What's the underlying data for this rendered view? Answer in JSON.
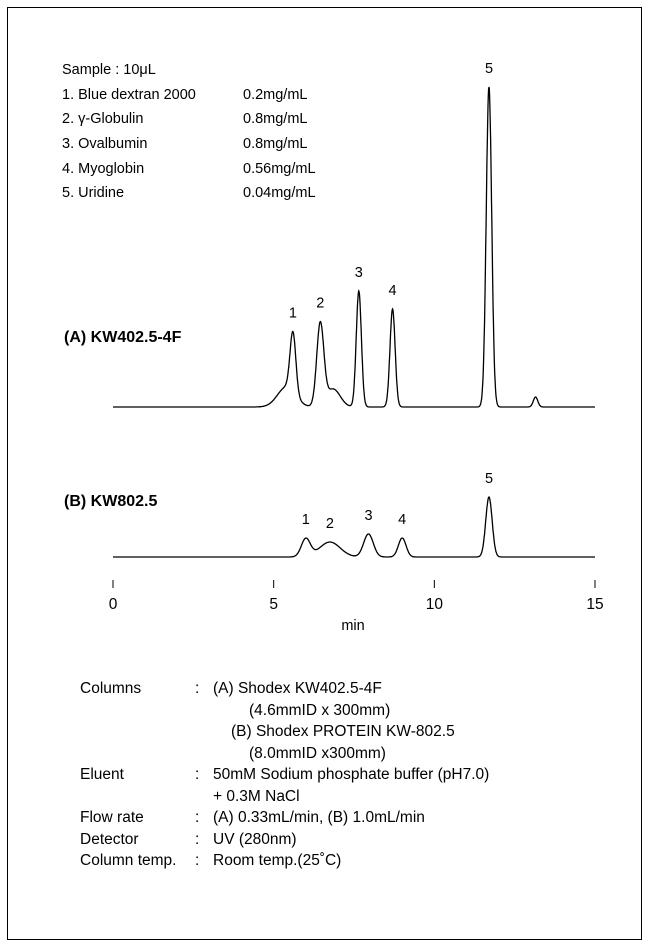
{
  "sample": {
    "header": "Sample : 10μL",
    "items": [
      {
        "name": "1. Blue dextran 2000",
        "conc": "0.2mg/mL"
      },
      {
        "name": "2. γ-Globulin",
        "conc": "0.8mg/mL"
      },
      {
        "name": "3. Ovalbumin",
        "conc": "0.8mg/mL"
      },
      {
        "name": "4. Myoglobin",
        "conc": "0.56mg/mL"
      },
      {
        "name": "5. Uridine",
        "conc": "0.04mg/mL"
      }
    ]
  },
  "chart_data": {
    "type": "line",
    "xlabel": "min",
    "xlim": [
      0,
      15
    ],
    "xticks": [
      0,
      5,
      10,
      15
    ],
    "series": [
      {
        "name": "(A) KW402.5-4F",
        "baseline": 0,
        "peaks": [
          {
            "label": "1",
            "t": 5.6,
            "h": 60,
            "w": 0.09
          },
          {
            "label": "2",
            "t": 6.45,
            "h": 82,
            "w": 0.11
          },
          {
            "label": "3",
            "t": 7.65,
            "h": 116,
            "w": 0.08
          },
          {
            "label": "4",
            "t": 8.7,
            "h": 98,
            "w": 0.08
          },
          {
            "label": "5",
            "t": 11.7,
            "h": 320,
            "w": 0.085
          },
          {
            "label": "",
            "t": 13.15,
            "h": 10,
            "w": 0.07
          }
        ],
        "features": [
          {
            "t": 5.4,
            "h": 20,
            "w": 0.28
          },
          {
            "t": 6.85,
            "h": 18,
            "w": 0.22
          }
        ]
      },
      {
        "name": "(B) KW802.5",
        "baseline": 0,
        "peaks": [
          {
            "label": "1",
            "t": 6.0,
            "h": 18,
            "w": 0.14
          },
          {
            "label": "2",
            "t": 6.75,
            "h": 15,
            "w": 0.32
          },
          {
            "label": "3",
            "t": 7.95,
            "h": 23,
            "w": 0.15
          },
          {
            "label": "4",
            "t": 9.0,
            "h": 19,
            "w": 0.12
          },
          {
            "label": "5",
            "t": 11.7,
            "h": 60,
            "w": 0.1
          }
        ],
        "features": []
      }
    ]
  },
  "conditions": {
    "columns_label": "Columns",
    "columns_a": "(A) Shodex KW402.5-4F",
    "columns_a_dim": "(4.6mmID x 300mm)",
    "columns_b": "(B) Shodex PROTEIN KW-802.5",
    "columns_b_dim": "(8.0mmID x300mm)",
    "eluent_label": "Eluent",
    "eluent": "50mM Sodium phosphate buffer (pH7.0)",
    "eluent_2": "+ 0.3M NaCl",
    "flow_label": "Flow rate",
    "flow": "(A) 0.33mL/min, (B)  1.0mL/min",
    "detector_label": "Detector",
    "detector": "UV (280nm)",
    "temp_label": "Column temp.",
    "temp": "Room temp.(25˚C)"
  }
}
